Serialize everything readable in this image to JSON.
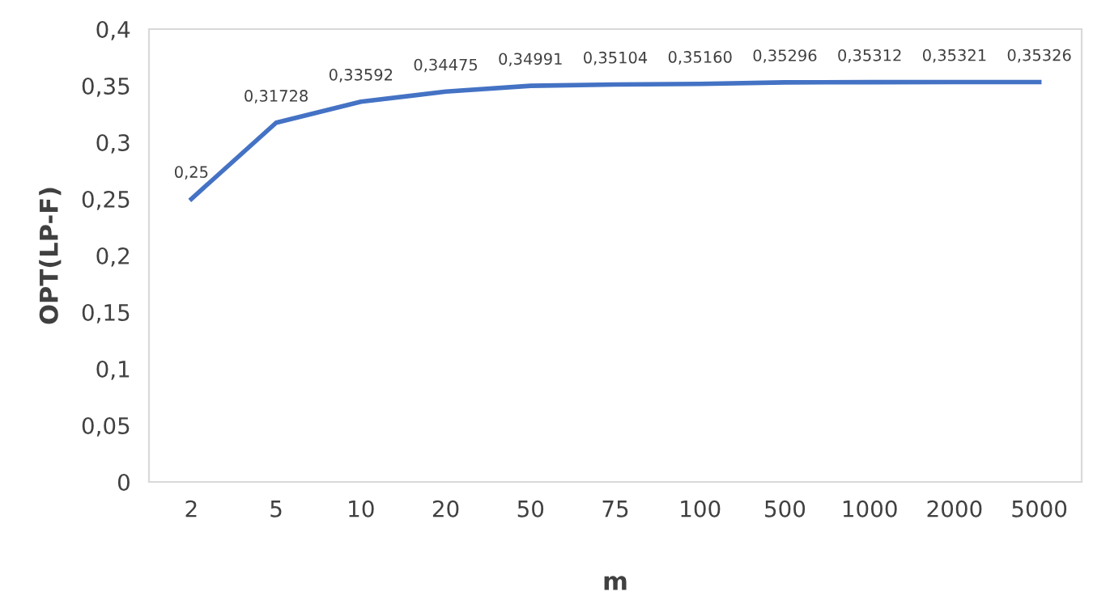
{
  "chart_data": {
    "type": "line",
    "xlabel": "m",
    "ylabel": "OPT(LP-F)",
    "categories": [
      "2",
      "5",
      "10",
      "20",
      "50",
      "75",
      "100",
      "500",
      "1000",
      "2000",
      "5000"
    ],
    "series": [
      {
        "color": "#4472c4",
        "values": [
          0.25,
          0.31728,
          0.33592,
          0.34475,
          0.34991,
          0.35104,
          0.3516,
          0.35296,
          0.35312,
          0.35321,
          0.35326
        ],
        "value_labels": [
          "0,25",
          "0,31728",
          "0,33592",
          "0,34475",
          "0,34991",
          "0,35104",
          "0,35160",
          "0,35296",
          "0,35312",
          "0,35321",
          "0,35326"
        ]
      }
    ],
    "ylim": [
      0,
      0.4
    ],
    "yticks": [
      0,
      {
        "value": 0.05,
        "label": "0,05"
      },
      {
        "value": 0.1,
        "label": "0,1"
      },
      {
        "value": 0.15,
        "label": "0,15"
      },
      {
        "value": 0.2,
        "label": "0,2"
      },
      {
        "value": 0.25,
        "label": "0,25"
      },
      {
        "value": 0.3,
        "label": "0,3"
      },
      {
        "value": 0.35,
        "label": "0,35"
      },
      {
        "value": 0.4,
        "label": "0,4"
      }
    ],
    "grid": false,
    "legend": false,
    "marker": "none",
    "line_style": "solid"
  }
}
